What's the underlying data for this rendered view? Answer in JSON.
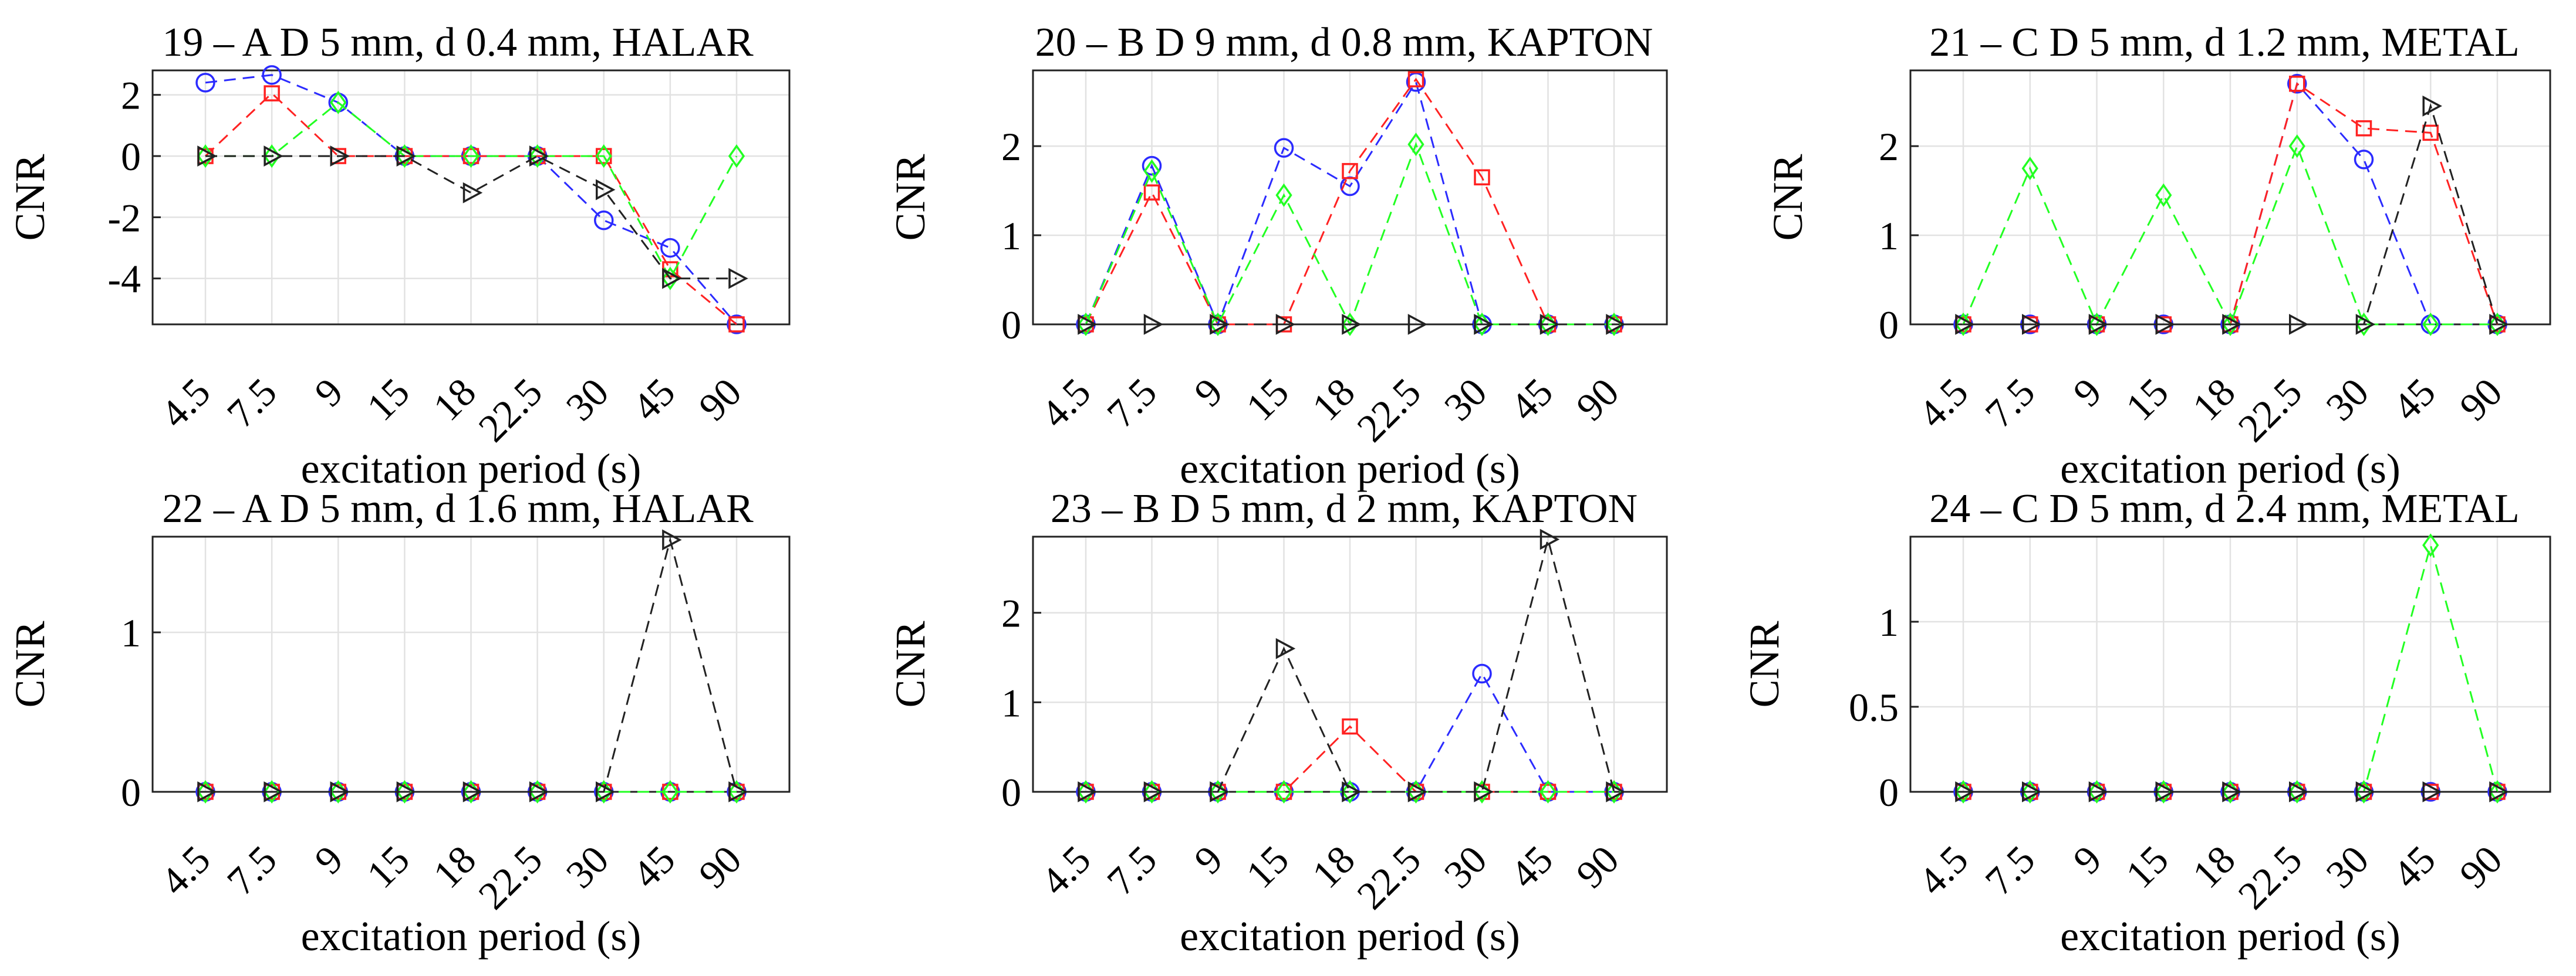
{
  "chart_data": [
    {
      "type": "line",
      "title": "19 – A D 5 mm, d 0.4 mm, HALAR",
      "xlabel": "excitation period (s)",
      "ylabel": "CNR",
      "categories": [
        "4.5",
        "7.5",
        "9",
        "15",
        "18",
        "22.5",
        "30",
        "45",
        "90"
      ],
      "ylim": [
        -5.5,
        2.8
      ],
      "yticks": [
        2,
        0,
        -2,
        -4
      ],
      "ytick_labels": [
        "2",
        "0",
        "-2",
        "-4"
      ],
      "grid": true,
      "series": [
        {
          "name": "blue circles",
          "color": "#2b2bff",
          "marker": "circle",
          "values": [
            2.4,
            2.65,
            1.75,
            0,
            0,
            0,
            -2.1,
            -3.0,
            -5.5
          ]
        },
        {
          "name": "red squares",
          "color": "#ff2222",
          "marker": "square",
          "values": [
            0,
            2.05,
            0,
            0,
            0,
            0,
            0,
            -3.7,
            -5.5
          ]
        },
        {
          "name": "green diamonds",
          "color": "#22ff22",
          "marker": "diamond",
          "values": [
            0,
            0,
            1.75,
            0,
            0,
            0,
            0,
            -4.0,
            0
          ]
        },
        {
          "name": "black triangles",
          "color": "#222222",
          "marker": "triangle",
          "values": [
            0,
            0,
            0,
            0,
            -1.2,
            0,
            -1.1,
            -4.0,
            -4.0
          ]
        }
      ]
    },
    {
      "type": "line",
      "title": "20 – B D 9 mm, d 0.8 mm, KAPTON",
      "xlabel": "excitation period (s)",
      "ylabel": "CNR",
      "categories": [
        "4.5",
        "7.5",
        "9",
        "15",
        "18",
        "22.5",
        "30",
        "45",
        "90"
      ],
      "ylim": [
        0,
        2.85
      ],
      "yticks": [
        2,
        1,
        0
      ],
      "ytick_labels": [
        "2",
        "1",
        "0"
      ],
      "grid": true,
      "series": [
        {
          "name": "blue circles",
          "color": "#2b2bff",
          "marker": "circle",
          "values": [
            0,
            1.78,
            0,
            1.98,
            1.55,
            2.72,
            0,
            0,
            0
          ]
        },
        {
          "name": "red squares",
          "color": "#ff2222",
          "marker": "square",
          "values": [
            0,
            1.48,
            0,
            0,
            1.72,
            2.75,
            1.65,
            0,
            0
          ]
        },
        {
          "name": "green diamonds",
          "color": "#22ff22",
          "marker": "diamond",
          "values": [
            0,
            1.72,
            0,
            1.45,
            0,
            2.02,
            0,
            0,
            0
          ]
        },
        {
          "name": "black triangles",
          "color": "#222222",
          "marker": "triangle",
          "values": [
            0,
            0,
            0,
            0,
            0,
            0,
            0,
            0,
            0
          ]
        }
      ]
    },
    {
      "type": "line",
      "title": "21 – C D 5 mm, d 1.2 mm, METAL",
      "xlabel": "excitation period (s)",
      "ylabel": "CNR",
      "categories": [
        "4.5",
        "7.5",
        "9",
        "15",
        "18",
        "22.5",
        "30",
        "45",
        "90"
      ],
      "ylim": [
        0,
        2.85
      ],
      "yticks": [
        2,
        1,
        0
      ],
      "ytick_labels": [
        "2",
        "1",
        "0"
      ],
      "grid": true,
      "series": [
        {
          "name": "blue circles",
          "color": "#2b2bff",
          "marker": "circle",
          "values": [
            0,
            0,
            0,
            0,
            0,
            2.7,
            1.85,
            0,
            0
          ]
        },
        {
          "name": "red squares",
          "color": "#ff2222",
          "marker": "square",
          "values": [
            0,
            0,
            0,
            0,
            0,
            2.7,
            2.2,
            2.15,
            0
          ]
        },
        {
          "name": "green diamonds",
          "color": "#22ff22",
          "marker": "diamond",
          "values": [
            0,
            1.75,
            0,
            1.45,
            0,
            2.0,
            0,
            0,
            0
          ]
        },
        {
          "name": "black triangles",
          "color": "#222222",
          "marker": "triangle",
          "values": [
            0,
            0,
            0,
            0,
            0,
            0,
            0,
            2.45,
            0
          ]
        }
      ]
    },
    {
      "type": "line",
      "title": "22 – A D 5 mm, d 1.6 mm, HALAR",
      "xlabel": "excitation period (s)",
      "ylabel": "CNR",
      "categories": [
        "4.5",
        "7.5",
        "9",
        "15",
        "18",
        "22.5",
        "30",
        "45",
        "90"
      ],
      "ylim": [
        0,
        1.6
      ],
      "yticks": [
        1,
        0
      ],
      "ytick_labels": [
        "1",
        "0"
      ],
      "grid": true,
      "series": [
        {
          "name": "blue circles",
          "color": "#2b2bff",
          "marker": "circle",
          "values": [
            0,
            0,
            0,
            0,
            0,
            0,
            0,
            0,
            0
          ]
        },
        {
          "name": "red squares",
          "color": "#ff2222",
          "marker": "square",
          "values": [
            0,
            0,
            0,
            0,
            0,
            0,
            0,
            0,
            0
          ]
        },
        {
          "name": "green diamonds",
          "color": "#22ff22",
          "marker": "diamond",
          "values": [
            0,
            0,
            0,
            0,
            0,
            0,
            0,
            0,
            0
          ]
        },
        {
          "name": "black triangles",
          "color": "#222222",
          "marker": "triangle",
          "values": [
            0,
            0,
            0,
            0,
            0,
            0,
            0,
            1.58,
            0
          ]
        }
      ]
    },
    {
      "type": "line",
      "title": "23 – B D 5 mm, d 2 mm, KAPTON",
      "xlabel": "excitation period (s)",
      "ylabel": "CNR",
      "categories": [
        "4.5",
        "7.5",
        "9",
        "15",
        "18",
        "22.5",
        "30",
        "45",
        "90"
      ],
      "ylim": [
        0,
        2.85
      ],
      "yticks": [
        2,
        1,
        0
      ],
      "ytick_labels": [
        "2",
        "1",
        "0"
      ],
      "grid": true,
      "series": [
        {
          "name": "blue circles",
          "color": "#2b2bff",
          "marker": "circle",
          "values": [
            0,
            0,
            0,
            0,
            0,
            0,
            1.32,
            0,
            0
          ]
        },
        {
          "name": "red squares",
          "color": "#ff2222",
          "marker": "square",
          "values": [
            0,
            0,
            0,
            0,
            0.73,
            0,
            0,
            0,
            0
          ]
        },
        {
          "name": "green diamonds",
          "color": "#22ff22",
          "marker": "diamond",
          "values": [
            0,
            0,
            0,
            0,
            0,
            0,
            0,
            0,
            0
          ]
        },
        {
          "name": "black triangles",
          "color": "#222222",
          "marker": "triangle",
          "values": [
            0,
            0,
            0,
            1.6,
            0,
            0,
            0,
            2.82,
            0
          ]
        }
      ]
    },
    {
      "type": "line",
      "title": "24 – C D 5 mm, d 2.4 mm, METAL",
      "xlabel": "excitation period (s)",
      "ylabel": "CNR",
      "categories": [
        "4.5",
        "7.5",
        "9",
        "15",
        "18",
        "22.5",
        "30",
        "45",
        "90"
      ],
      "ylim": [
        0,
        1.5
      ],
      "yticks": [
        1,
        0.5,
        0
      ],
      "ytick_labels": [
        "1",
        "0.5",
        "0"
      ],
      "grid": true,
      "series": [
        {
          "name": "blue circles",
          "color": "#2b2bff",
          "marker": "circle",
          "values": [
            0,
            0,
            0,
            0,
            0,
            0,
            0,
            0,
            0
          ]
        },
        {
          "name": "red squares",
          "color": "#ff2222",
          "marker": "square",
          "values": [
            0,
            0,
            0,
            0,
            0,
            0,
            0,
            0,
            0
          ]
        },
        {
          "name": "green diamonds",
          "color": "#22ff22",
          "marker": "diamond",
          "values": [
            0,
            0,
            0,
            0,
            0,
            0,
            0,
            1.45,
            0
          ]
        },
        {
          "name": "black triangles",
          "color": "#222222",
          "marker": "triangle",
          "values": [
            0,
            0,
            0,
            0,
            0,
            0,
            0,
            0,
            0
          ]
        }
      ]
    }
  ]
}
